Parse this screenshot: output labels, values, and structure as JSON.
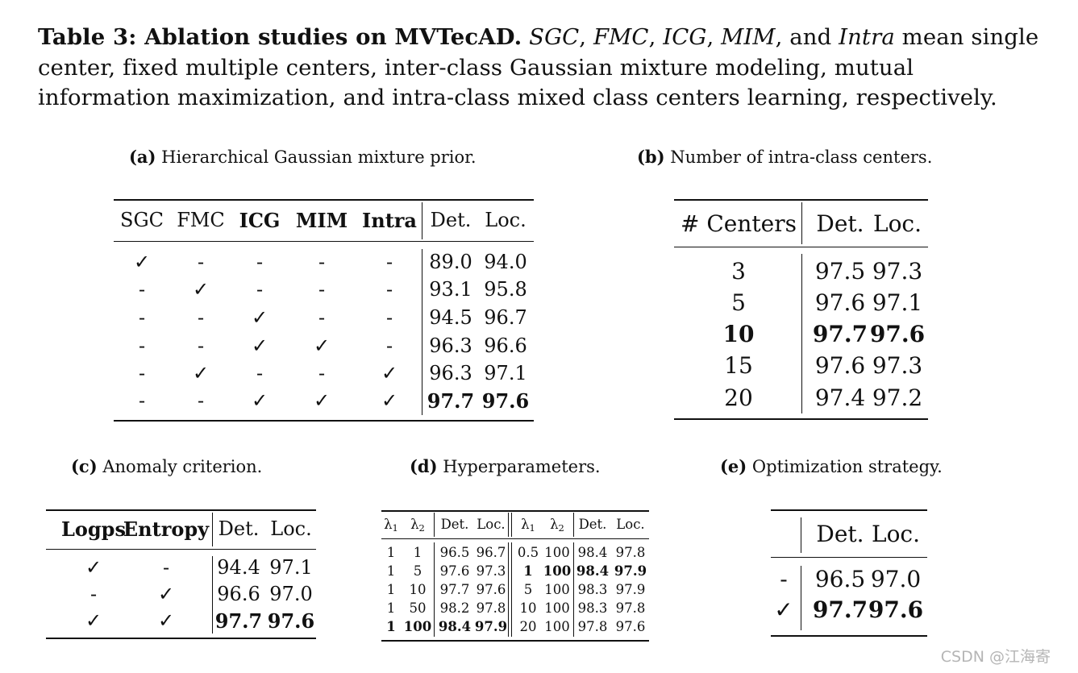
{
  "caption": {
    "label": "Table 3: Ablation studies on MVTecAD.",
    "abbr": [
      "SGC",
      "FMC",
      "ICG",
      "MIM",
      "Intra"
    ],
    "sep1": ", ",
    "and": ", and ",
    "rest": " mean single center, fixed multiple centers, inter-class Gaussian mixture modeling, mutual information maximization, and intra-class mixed class centers learning, respectively."
  },
  "table_a": {
    "tag": "(a)",
    "title": "Hierarchical Gaussian mixture prior.",
    "headers": [
      "SGC",
      "FMC",
      "ICG",
      "MIM",
      "Intra",
      "Det.",
      "Loc."
    ],
    "rows": [
      [
        "✓",
        "-",
        "-",
        "-",
        "-",
        "89.0",
        "94.0"
      ],
      [
        "-",
        "✓",
        "-",
        "-",
        "-",
        "93.1",
        "95.8"
      ],
      [
        "-",
        "-",
        "✓",
        "-",
        "-",
        "94.5",
        "96.7"
      ],
      [
        "-",
        "-",
        "✓",
        "✓",
        "-",
        "96.3",
        "96.6"
      ],
      [
        "-",
        "✓",
        "-",
        "-",
        "✓",
        "96.3",
        "97.1"
      ],
      [
        "-",
        "-",
        "✓",
        "✓",
        "✓",
        "97.7",
        "97.6"
      ]
    ]
  },
  "table_b": {
    "tag": "(b)",
    "title": "Number of intra-class centers.",
    "headers": [
      "# Centers",
      "Det.",
      "Loc."
    ],
    "rows": [
      [
        "3",
        "97.5",
        "97.3"
      ],
      [
        "5",
        "97.6",
        "97.1"
      ],
      [
        "10",
        "97.7",
        "97.6"
      ],
      [
        "15",
        "97.6",
        "97.3"
      ],
      [
        "20",
        "97.4",
        "97.2"
      ]
    ]
  },
  "table_c": {
    "tag": "(c)",
    "title": "Anomaly criterion.",
    "headers": [
      "Logps",
      "Entropy",
      "Det.",
      "Loc."
    ],
    "rows": [
      [
        "✓",
        "-",
        "94.4",
        "97.1"
      ],
      [
        "-",
        "✓",
        "96.6",
        "97.0"
      ],
      [
        "✓",
        "✓",
        "97.7",
        "97.6"
      ]
    ]
  },
  "table_d": {
    "tag": "(d)",
    "title": "Hyperparameters.",
    "lambda_symbol": "λ",
    "headers": [
      "1",
      "2",
      "Det.",
      "Loc.",
      "1",
      "2",
      "Det.",
      "Loc."
    ],
    "rows": [
      [
        "1",
        "1",
        "96.5",
        "96.7",
        "0.5",
        "100",
        "98.4",
        "97.8"
      ],
      [
        "1",
        "5",
        "97.6",
        "97.3",
        "1",
        "100",
        "98.4",
        "97.9"
      ],
      [
        "1",
        "10",
        "97.7",
        "97.6",
        "5",
        "100",
        "98.3",
        "97.9"
      ],
      [
        "1",
        "50",
        "98.2",
        "97.8",
        "10",
        "100",
        "98.3",
        "97.8"
      ],
      [
        "1",
        "100",
        "98.4",
        "97.9",
        "20",
        "100",
        "97.8",
        "97.6"
      ]
    ]
  },
  "table_e": {
    "tag": "(e)",
    "title": "Optimization strategy.",
    "headers": [
      "",
      "Det.",
      "Loc."
    ],
    "rows": [
      [
        "-",
        "96.5",
        "97.0"
      ],
      [
        "✓",
        "97.7",
        "97.6"
      ]
    ]
  },
  "watermark": "CSDN @江海寄"
}
